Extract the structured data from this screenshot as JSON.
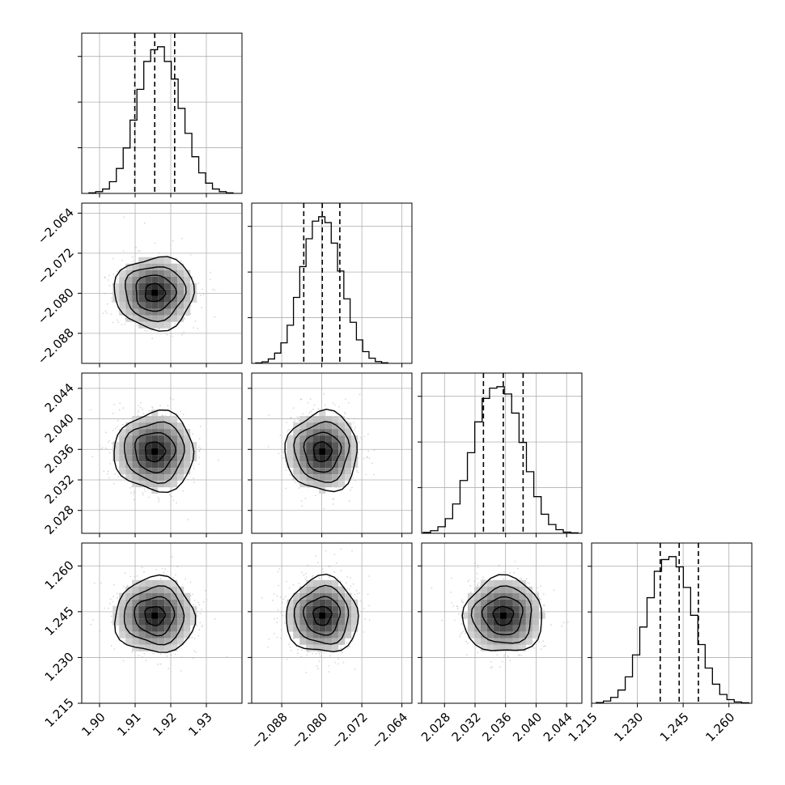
{
  "chart_data": {
    "type": "corner",
    "parameters": [
      {
        "xlim": [
          1.895,
          1.94
        ],
        "xticks": [
          1.9,
          1.91,
          1.92,
          1.93
        ],
        "xtick_labels": [
          "1.90",
          "1.91",
          "1.92",
          "1.93"
        ],
        "ylim": [
          2.025,
          2.046
        ],
        "yticks": [
          2.028,
          2.032,
          2.036,
          2.04,
          2.044
        ],
        "ytick_labels": [],
        "quantiles": [
          1.9099,
          1.9155,
          1.9211
        ],
        "hist_values": [
          0.004,
          0.012,
          0.03,
          0.08,
          0.17,
          0.31,
          0.5,
          0.71,
          0.9,
          0.98,
          1.0,
          0.9,
          0.78,
          0.58,
          0.41,
          0.25,
          0.14,
          0.07,
          0.03,
          0.012,
          0.004
        ],
        "hist_range": [
          1.897,
          1.9375
        ]
      },
      {
        "xlim": [
          -2.094,
          -2.062
        ],
        "xticks": [
          -2.088,
          -2.08,
          -2.072,
          -2.064
        ],
        "xtick_labels": [
          "−2.088",
          "−2.080",
          "−2.072",
          "−2.064"
        ],
        "ylim": [
          -2.094,
          -2.062
        ],
        "yticks": [
          -2.088,
          -2.08,
          -2.072,
          -2.064
        ],
        "ytick_labels": [
          "−2.088",
          "−2.080",
          "−2.072",
          "−2.064"
        ],
        "quantiles": [
          -2.0836,
          -2.0799,
          -2.0764
        ],
        "hist_values": [
          0.003,
          0.01,
          0.03,
          0.07,
          0.14,
          0.26,
          0.45,
          0.66,
          0.85,
          0.97,
          1.0,
          0.96,
          0.82,
          0.63,
          0.44,
          0.28,
          0.16,
          0.08,
          0.035,
          0.012,
          0.004
        ],
        "hist_range": [
          -2.0932,
          -2.0668
        ]
      },
      {
        "xlim": [
          2.025,
          2.046
        ],
        "xticks": [
          2.028,
          2.032,
          2.036,
          2.04,
          2.044
        ],
        "xtick_labels": [
          "2.028",
          "2.032",
          "2.036",
          "2.040",
          "2.044"
        ],
        "ylim": [
          2.025,
          2.046
        ],
        "yticks": [
          2.028,
          2.032,
          2.036,
          2.04,
          2.044
        ],
        "ytick_labels": [
          "2.028",
          "2.032",
          "2.036",
          "2.040",
          "2.044"
        ],
        "quantiles": [
          2.0331,
          2.0357,
          2.0383
        ],
        "hist_values": [
          0.006,
          0.018,
          0.045,
          0.1,
          0.2,
          0.36,
          0.55,
          0.76,
          0.92,
          0.99,
          1.0,
          0.95,
          0.82,
          0.62,
          0.42,
          0.25,
          0.13,
          0.06,
          0.025,
          0.008,
          0.003
        ],
        "hist_range": [
          2.0252,
          2.0455
        ]
      },
      {
        "xlim": [
          1.215,
          1.2675
        ],
        "xticks": [
          1.215,
          1.23,
          1.245,
          1.26
        ],
        "xtick_labels": [
          "1.215",
          "1.230",
          "1.245",
          "1.260"
        ],
        "ylim": [
          1.215,
          1.2675
        ],
        "yticks": [
          1.215,
          1.23,
          1.245,
          1.26
        ],
        "ytick_labels": [
          "1.215",
          "1.230",
          "1.245",
          "1.260"
        ],
        "quantiles": [
          1.2375,
          1.2437,
          1.25
        ],
        "hist_values": [
          0.005,
          0.015,
          0.04,
          0.09,
          0.18,
          0.33,
          0.52,
          0.72,
          0.9,
          0.98,
          1.0,
          0.93,
          0.79,
          0.6,
          0.4,
          0.24,
          0.13,
          0.06,
          0.025,
          0.009,
          0.003
        ],
        "hist_range": [
          1.2165,
          1.2665
        ]
      }
    ],
    "scatter": [
      {
        "row": 1,
        "col": 0,
        "x_center": 1.9155,
        "y_center": -2.0799,
        "x_sigma": 0.0056,
        "y_sigma": 0.0036,
        "contour_radius_factors": [
          0.5,
          1.0,
          1.5,
          2.0
        ]
      },
      {
        "row": 2,
        "col": 0,
        "x_center": 1.9155,
        "y_center": 2.0357,
        "x_sigma": 0.0056,
        "y_sigma": 0.0026,
        "contour_radius_factors": [
          0.5,
          1.0,
          1.5,
          2.0
        ]
      },
      {
        "row": 2,
        "col": 1,
        "x_center": -2.0799,
        "y_center": 2.0357,
        "x_sigma": 0.0036,
        "y_sigma": 0.0026,
        "contour_radius_factors": [
          0.5,
          1.0,
          1.5,
          2.0
        ]
      },
      {
        "row": 3,
        "col": 0,
        "x_center": 1.9155,
        "y_center": 1.2437,
        "x_sigma": 0.0056,
        "y_sigma": 0.0062,
        "contour_radius_factors": [
          0.5,
          1.0,
          1.5,
          2.0
        ]
      },
      {
        "row": 3,
        "col": 1,
        "x_center": -2.0799,
        "y_center": 1.2437,
        "x_sigma": 0.0036,
        "y_sigma": 0.0062,
        "contour_radius_factors": [
          0.5,
          1.0,
          1.5,
          2.0
        ]
      },
      {
        "row": 3,
        "col": 2,
        "x_center": 2.0357,
        "y_center": 1.2437,
        "x_sigma": 0.0026,
        "y_sigma": 0.0062,
        "contour_radius_factors": [
          0.5,
          1.0,
          1.5,
          2.0
        ]
      }
    ],
    "grid": true,
    "colors": {
      "axes": "#000000",
      "grid": "#b0b0b0",
      "points": "#a8a8a8",
      "density": "#000000"
    }
  }
}
